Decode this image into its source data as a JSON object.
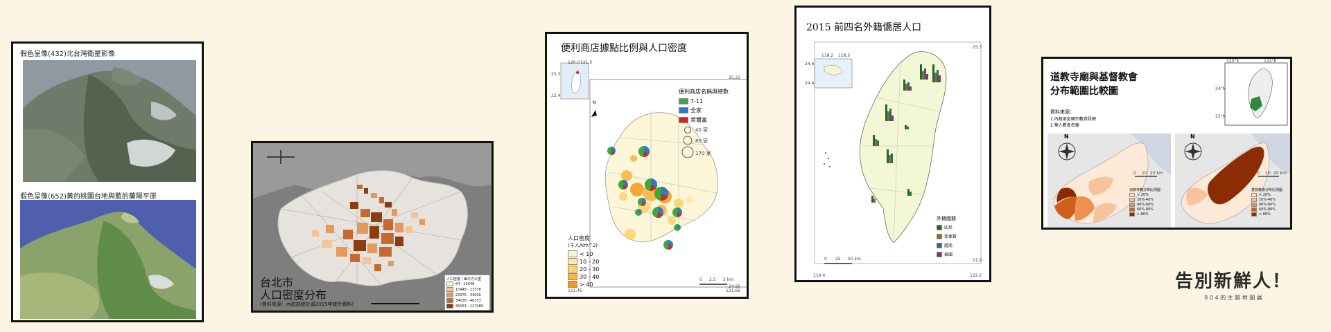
{
  "panel1": {
    "title_top": "假色呈像(432)北台灣衛星影像",
    "title_bottom": "假色呈像(652)黃的桃園台地與藍的蘭陽平原"
  },
  "panel2": {
    "title_line1": "台北市",
    "title_line2": "人口密度分布",
    "source": "(資料來源：內政部統計處2015年統計資料)",
    "legend_title": "人口密度 ( 每平方公里",
    "legend_items": [
      {
        "label": "64 - 10448",
        "color": "#fbe8d2"
      },
      {
        "label": "10448 - 23376",
        "color": "#f3c596"
      },
      {
        "label": "23376 - 34036",
        "color": "#e39a5b"
      },
      {
        "label": "34036 - 46153",
        "color": "#c7692c"
      },
      {
        "label": "46153 - 127089",
        "color": "#8e3b10"
      }
    ]
  },
  "panel3": {
    "title": "便利商店據點比例與人口密度",
    "legend_title": "便利商店名稱與總數",
    "store_items": [
      {
        "label": "7-11",
        "color": "#3aaa3a"
      },
      {
        "label": "全家",
        "color": "#2f78c4"
      },
      {
        "label": "萊爾富",
        "color": "#d9241e"
      }
    ],
    "size_items": [
      "40 家",
      "80 家",
      "170 家"
    ],
    "density_title": "人口密度",
    "density_unit": "(千人/km^2)",
    "density_items": [
      {
        "label": "< 10",
        "color": "#fdf5cc"
      },
      {
        "label": "10 - 20",
        "color": "#fde9a0"
      },
      {
        "label": "20 - 30",
        "color": "#fcd36a"
      },
      {
        "label": "30 - 40",
        "color": "#f9b53a"
      },
      {
        "label": "> 40",
        "color": "#f39a1c"
      }
    ],
    "inset_ticks": [
      "120.0",
      "121.5",
      "25.3",
      "22.4"
    ],
    "frame_ticks": [
      "121.45",
      "121.66",
      "25.22",
      "24.95"
    ],
    "scale": [
      "0",
      "2.5",
      "5 km"
    ],
    "north": "N"
  },
  "panel4": {
    "title": "2015 前四名外籍僑居人口",
    "legend_title": "外籍國籍",
    "legend_items": [
      {
        "label": "印尼",
        "color": "#1e6b2a"
      },
      {
        "label": "菲律賓",
        "color": "#8c6d2c"
      },
      {
        "label": "越南",
        "color": "#1f6f73"
      },
      {
        "label": "泰國",
        "color": "#9b2a62"
      }
    ],
    "inset_ticks": [
      "118.2",
      "118.5",
      "24.6",
      "24.4"
    ],
    "frame_ticks": [
      "119.4",
      "122.2",
      "25.3",
      "21.9"
    ],
    "scale": [
      "0",
      "25",
      "50 km"
    ]
  },
  "panel5": {
    "title_line1": "道教寺廟與基督教會",
    "title_line2": "分布範圍比較圖",
    "source_title": "資料來源：",
    "source_1": "1.內政部全國宗教資訊網",
    "source_2": "2.華人教會名錄",
    "inset_ticks": [
      "120°E",
      "122°E",
      "24°N",
      "22°N"
    ],
    "left_legend_title": "道教寺廟分布比例圖",
    "right_legend_title": "基督教會分布比例圖",
    "legend_items": [
      {
        "label": "< 20%",
        "color": "#fde9d8"
      },
      {
        "label": "20%-40%",
        "color": "#f8c39c"
      },
      {
        "label": "40%-60%",
        "color": "#ee9150"
      },
      {
        "label": "60%-80%",
        "color": "#cf5d1b"
      },
      {
        "label": "> 80%",
        "color": "#8c2c05"
      }
    ],
    "north": "N",
    "scale": [
      "0",
      "10",
      "20 km"
    ]
  },
  "brand": {
    "title": "告別新鮮人！",
    "subtitle": "8 0 4 的 主 題 地 圖 展"
  }
}
